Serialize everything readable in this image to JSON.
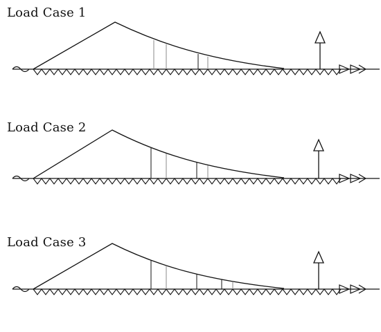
{
  "load_cases": [
    {
      "title": "Load Case 1",
      "arrow_x": 462
    },
    {
      "title": "Load Case 2",
      "arrow_x": 460
    },
    {
      "title": "Load Case 3",
      "arrow_x": 460
    }
  ]
}
